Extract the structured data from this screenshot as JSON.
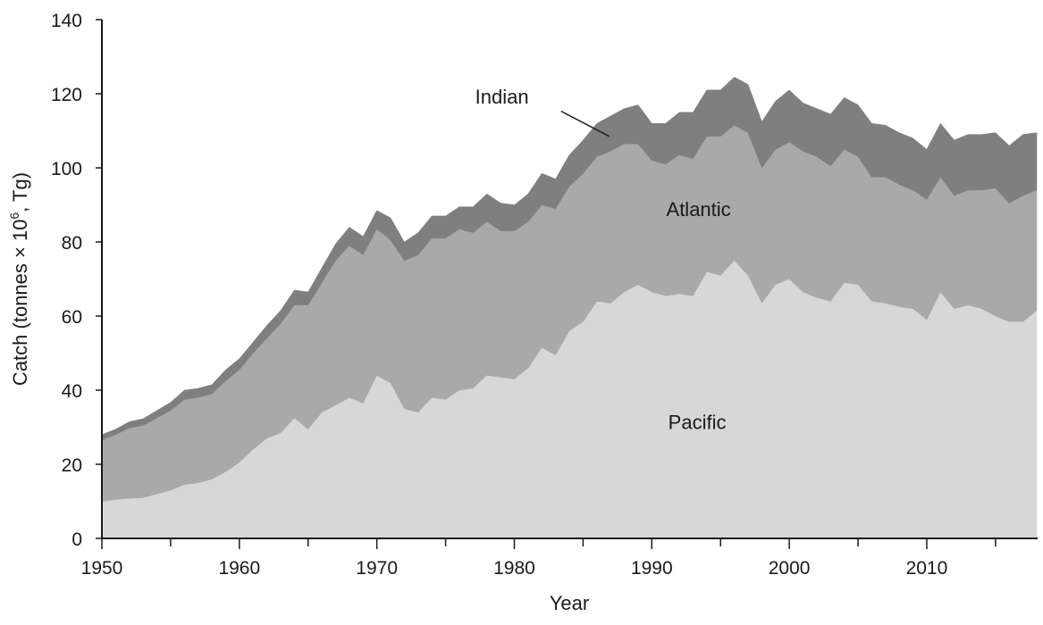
{
  "chart_data": {
    "type": "area",
    "stacked": true,
    "xlabel": "Year",
    "ylabel_prefix": "Catch (tonnes × 10",
    "ylabel_sup": "6",
    "ylabel_suffix": ", Tg)",
    "xlim": [
      1950,
      2018
    ],
    "ylim": [
      0,
      140
    ],
    "xticks": [
      1950,
      1960,
      1970,
      1980,
      1990,
      2000,
      2010
    ],
    "yticks": [
      0,
      20,
      40,
      60,
      80,
      100,
      120,
      140
    ],
    "x": [
      1950,
      1951,
      1952,
      1953,
      1954,
      1955,
      1956,
      1957,
      1958,
      1959,
      1960,
      1961,
      1962,
      1963,
      1964,
      1965,
      1966,
      1967,
      1968,
      1969,
      1970,
      1971,
      1972,
      1973,
      1974,
      1975,
      1976,
      1977,
      1978,
      1979,
      1980,
      1981,
      1982,
      1983,
      1984,
      1985,
      1986,
      1987,
      1988,
      1989,
      1990,
      1991,
      1992,
      1993,
      1994,
      1995,
      1996,
      1997,
      1998,
      1999,
      2000,
      2001,
      2002,
      2003,
      2004,
      2005,
      2006,
      2007,
      2008,
      2009,
      2010,
      2011,
      2012,
      2013,
      2014,
      2015,
      2016,
      2017,
      2018
    ],
    "series": [
      {
        "name": "Pacific",
        "color": "#d7d7d7",
        "values": [
          10,
          10.5,
          10.8,
          11,
          12,
          13,
          14.5,
          15,
          16,
          18,
          20.5,
          24,
          27,
          28.5,
          32.5,
          29.5,
          34,
          36,
          38,
          36.5,
          44,
          42,
          35,
          34,
          38,
          37.5,
          40,
          40.5,
          44,
          43.5,
          43,
          46,
          51.5,
          49.5,
          56,
          58.5,
          64,
          63.5,
          66.5,
          68.5,
          66.5,
          65.5,
          66,
          65.5,
          72,
          71,
          75,
          71,
          63.5,
          68.5,
          70,
          66.5,
          65,
          64,
          69,
          68.5,
          64,
          63.5,
          62.5,
          62,
          59,
          66.5,
          62,
          63,
          62,
          60,
          58.5,
          58.5,
          61.5
        ]
      },
      {
        "name": "Atlantic",
        "color": "#a9a9a9",
        "values": [
          16.5,
          17.5,
          19,
          19.5,
          20.5,
          21.5,
          23,
          23,
          23,
          24.5,
          25,
          26,
          27,
          29.5,
          30.5,
          33.5,
          35,
          39,
          41,
          40,
          39.5,
          38.5,
          40,
          42.5,
          43,
          43.5,
          43.5,
          42,
          41.5,
          39.5,
          40,
          39.5,
          38.5,
          39.5,
          39,
          40,
          39,
          41,
          40,
          38,
          35.5,
          35.5,
          37.5,
          37,
          36.5,
          37.5,
          36.5,
          38.5,
          36.5,
          36.5,
          37,
          38,
          38,
          36.5,
          36,
          34.5,
          33.5,
          34,
          33,
          32,
          32.5,
          31,
          30.5,
          31,
          32,
          34.5,
          32,
          34,
          32.5
        ]
      },
      {
        "name": "Indian",
        "color": "#7f7f7f",
        "values": [
          1.5,
          1.5,
          1.7,
          1.8,
          2,
          2.2,
          2.5,
          2.5,
          2.5,
          3,
          3,
          3,
          3.5,
          3.5,
          4,
          3.5,
          4,
          4.5,
          5,
          5,
          5,
          6,
          5,
          6,
          6,
          6,
          6,
          7,
          7.5,
          7.5,
          7,
          7.5,
          8.5,
          8,
          8.5,
          9,
          9,
          9.5,
          9.5,
          10.5,
          10,
          11,
          11.5,
          12.5,
          12.5,
          12.5,
          13,
          13,
          12.5,
          13,
          14,
          13,
          13,
          14,
          14,
          14,
          14.5,
          14,
          14,
          14,
          13.5,
          14.5,
          15,
          15,
          15,
          15,
          15.5,
          16.5,
          15.5
        ]
      }
    ],
    "annotations": {
      "pacific": "Pacific",
      "atlantic": "Atlantic",
      "indian": "Indian"
    }
  }
}
